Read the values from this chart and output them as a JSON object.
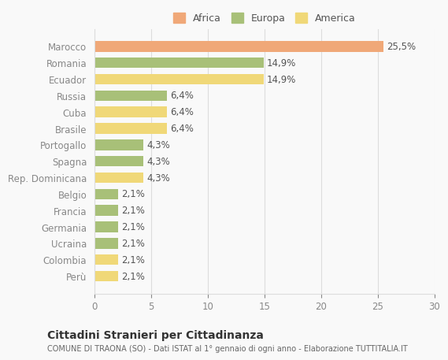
{
  "countries": [
    "Marocco",
    "Romania",
    "Ecuador",
    "Russia",
    "Cuba",
    "Brasile",
    "Portogallo",
    "Spagna",
    "Rep. Dominicana",
    "Belgio",
    "Francia",
    "Germania",
    "Ucraina",
    "Colombia",
    "Perù"
  ],
  "values": [
    25.5,
    14.9,
    14.9,
    6.4,
    6.4,
    6.4,
    4.3,
    4.3,
    4.3,
    2.1,
    2.1,
    2.1,
    2.1,
    2.1,
    2.1
  ],
  "labels": [
    "25,5%",
    "14,9%",
    "14,9%",
    "6,4%",
    "6,4%",
    "6,4%",
    "4,3%",
    "4,3%",
    "4,3%",
    "2,1%",
    "2,1%",
    "2,1%",
    "2,1%",
    "2,1%",
    "2,1%"
  ],
  "colors": [
    "#F0A878",
    "#A8C078",
    "#F0D878",
    "#A8C078",
    "#F0D878",
    "#F0D878",
    "#A8C078",
    "#A8C078",
    "#F0D878",
    "#A8C078",
    "#A8C078",
    "#A8C078",
    "#A8C078",
    "#F0D878",
    "#F0D878"
  ],
  "continent": [
    "Africa",
    "Europa",
    "America",
    "Europa",
    "America",
    "America",
    "Europa",
    "Europa",
    "America",
    "Europa",
    "Europa",
    "Europa",
    "Europa",
    "America",
    "America"
  ],
  "legend_labels": [
    "Africa",
    "Europa",
    "America"
  ],
  "legend_colors": [
    "#F0A878",
    "#A8C078",
    "#F0D878"
  ],
  "title": "Cittadini Stranieri per Cittadinanza",
  "subtitle": "COMUNE DI TRAONA (SO) - Dati ISTAT al 1° gennaio di ogni anno - Elaborazione TUTTITALIA.IT",
  "xlim": [
    0,
    30
  ],
  "xticks": [
    0,
    5,
    10,
    15,
    20,
    25,
    30
  ],
  "bg_color": "#f9f9f9",
  "grid_color": "#dddddd"
}
